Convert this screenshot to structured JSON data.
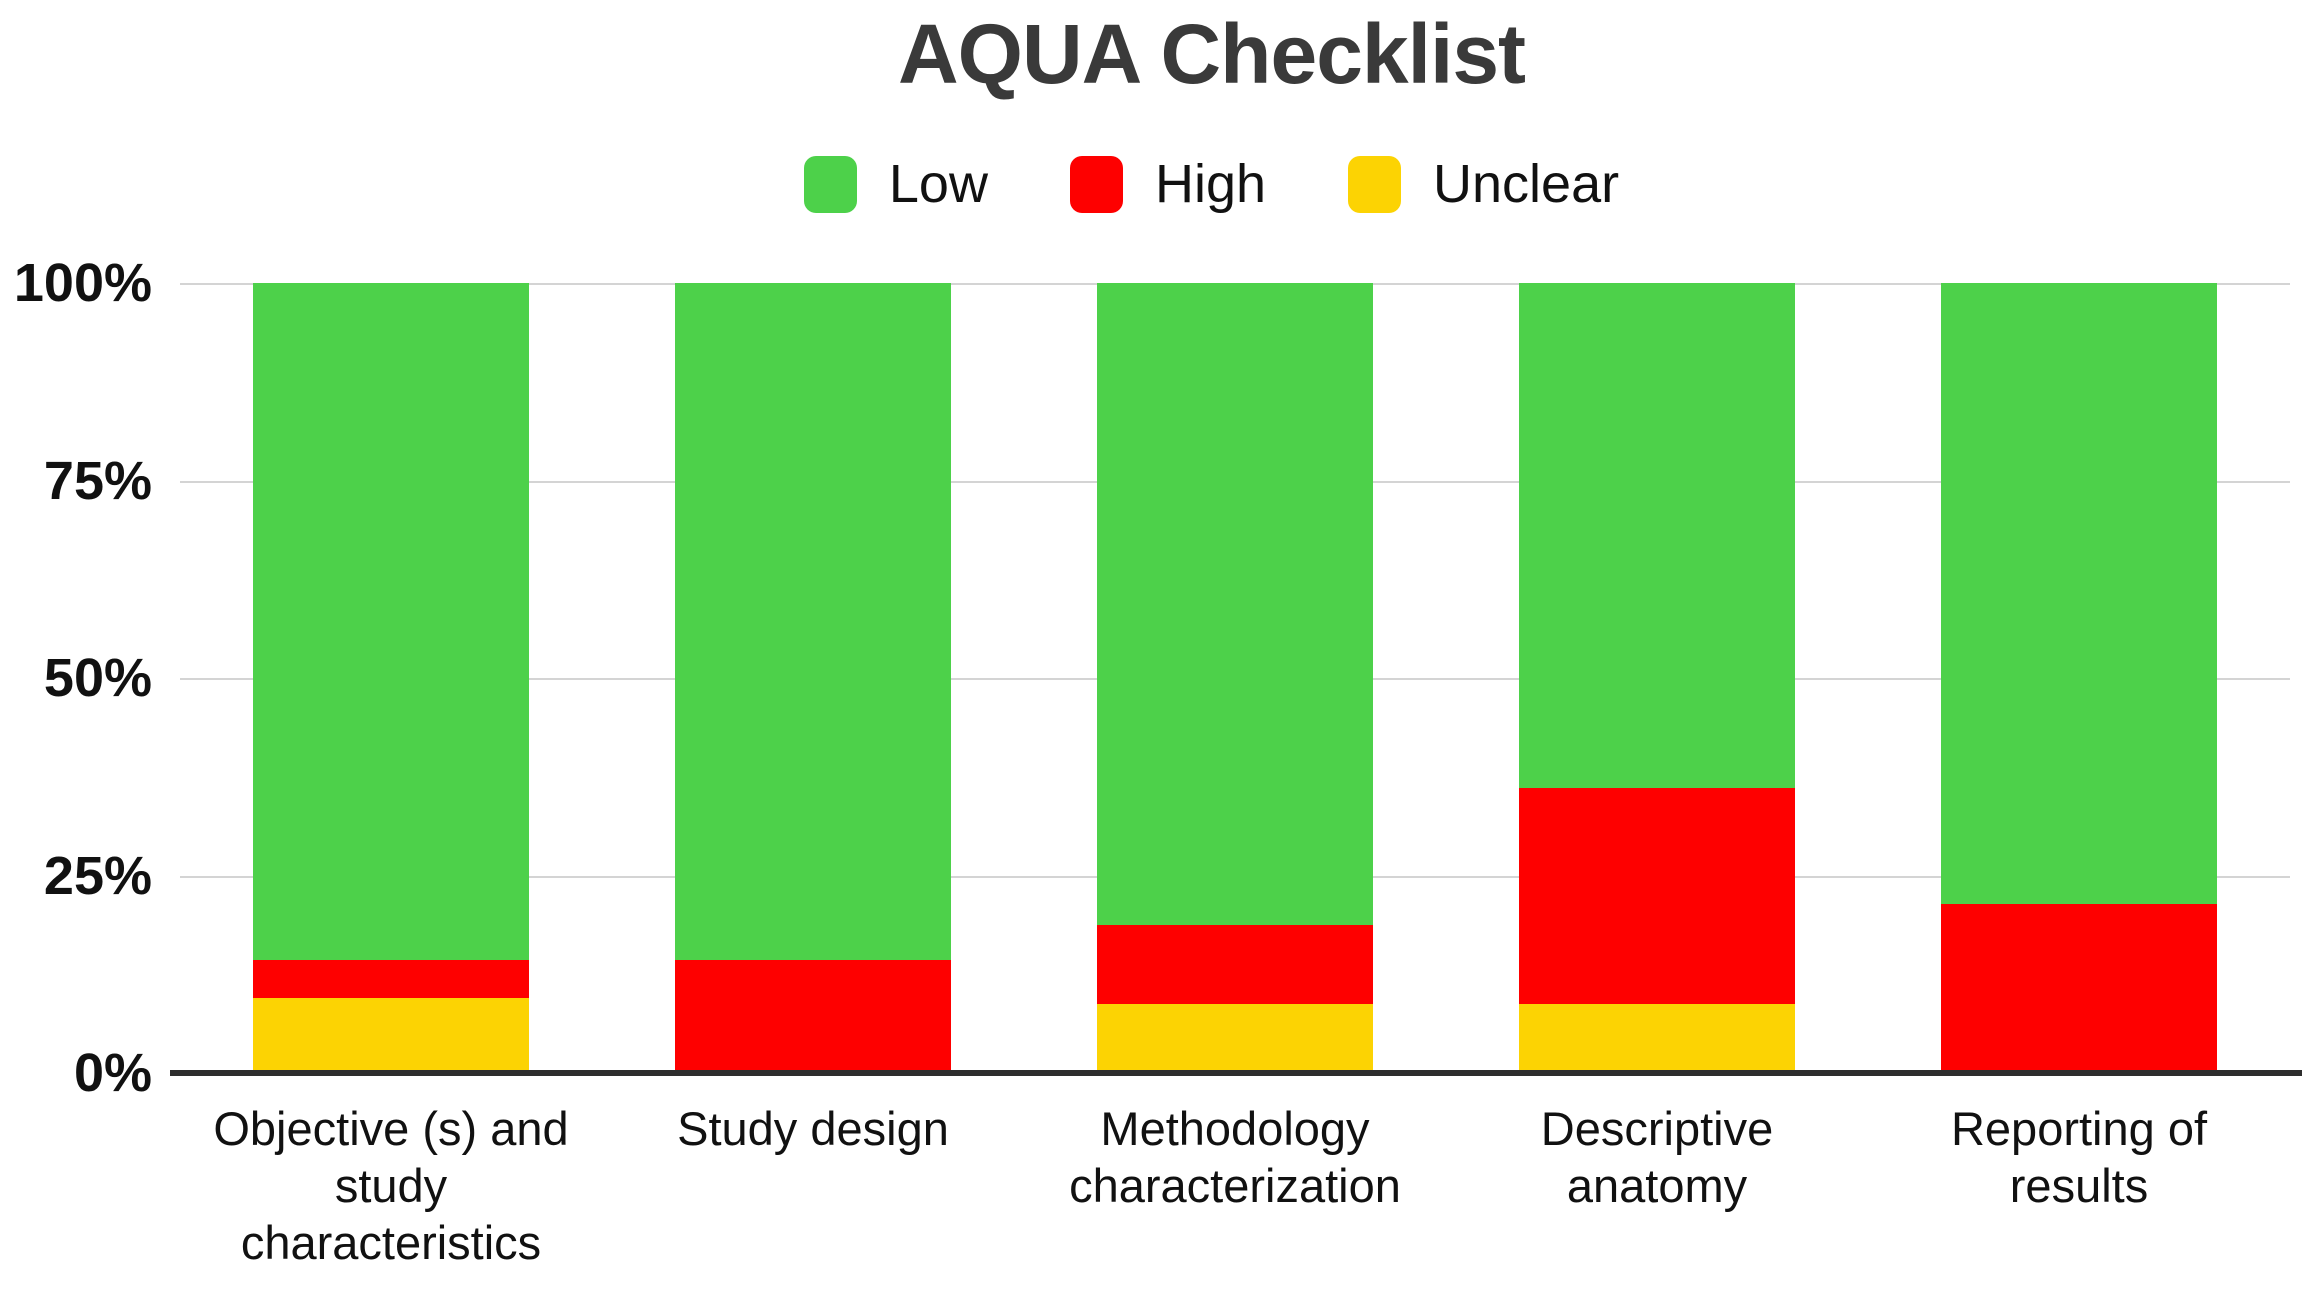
{
  "title": "AQUA Checklist",
  "legend": [
    {
      "label": "Low",
      "color": "#4dd14a"
    },
    {
      "label": "High",
      "color": "#fe0000"
    },
    {
      "label": "Unclear",
      "color": "#fcd303"
    }
  ],
  "chart_data": {
    "type": "bar",
    "stacked": true,
    "orientation": "vertical",
    "title": "AQUA Checklist",
    "categories": [
      "Objective (s) and study characteristics",
      "Study design",
      "Methodology characterization",
      "Descriptive anatomy",
      "Reporting of results"
    ],
    "category_lines": [
      [
        "Objective (s) and",
        "study",
        "characteristics"
      ],
      [
        "Study design"
      ],
      [
        "Methodology",
        "characterization"
      ],
      [
        "Descriptive",
        "anatomy"
      ],
      [
        "Reporting of",
        "results"
      ]
    ],
    "series": [
      {
        "name": "Low",
        "color": "#4dd14a",
        "values": [
          85.7,
          85.7,
          81.2,
          63.9,
          78.6
        ]
      },
      {
        "name": "High",
        "color": "#fe0000",
        "values": [
          4.8,
          14.3,
          10.1,
          27.4,
          21.4
        ]
      },
      {
        "name": "Unclear",
        "color": "#fcd303",
        "values": [
          9.5,
          0,
          8.7,
          8.7,
          0
        ]
      }
    ],
    "xlabel": "",
    "ylabel": "",
    "ylim": [
      0,
      100
    ],
    "yticks": [
      "100%",
      "75%",
      "50%",
      "25%",
      "0%"
    ],
    "ytick_interval": 25,
    "ytick_format": "percent",
    "grid": true,
    "legend_position": "top",
    "colors": {
      "grid": "#d4d4d4",
      "axis_line": "#2e2e2e",
      "title_text": "#3a3a3a",
      "label_text": "#111111",
      "background": "#ffffff"
    }
  }
}
